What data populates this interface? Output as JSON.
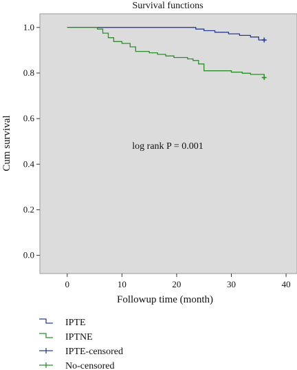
{
  "chart_data": {
    "type": "line",
    "title": "Survival functions",
    "xlabel": "Followup time (month)",
    "ylabel": "Cum survival",
    "xlim": [
      -5,
      42
    ],
    "ylim": [
      -0.08,
      1.06
    ],
    "xticks": [
      0,
      10,
      20,
      30,
      40
    ],
    "xtick_labels": [
      "0",
      "10",
      "20",
      "30",
      "40"
    ],
    "yticks": [
      0.0,
      0.2,
      0.4,
      0.6,
      0.8,
      1.0
    ],
    "ytick_labels": [
      "0.0",
      "0.2",
      "0.4",
      "0.6",
      "0.8",
      "1.0"
    ],
    "grid": false,
    "background": "#dcdcdc",
    "annotation": "log rank P = 0.001",
    "legend_position": "bottom-left",
    "series": [
      {
        "name": "IPTE",
        "color": "#2a3a8c",
        "kind": "step",
        "x": [
          0,
          23.5,
          25,
          27,
          29.5,
          31.5,
          33.5,
          35,
          36
        ],
        "y": [
          1.0,
          0.993,
          0.986,
          0.979,
          0.972,
          0.965,
          0.958,
          0.945,
          0.945
        ]
      },
      {
        "name": "IPTNE",
        "color": "#2e8b2e",
        "kind": "step",
        "x": [
          0,
          5.5,
          6.5,
          7.5,
          8.5,
          10,
          11.5,
          12.5,
          15,
          16.5,
          18,
          19.5,
          22,
          23,
          24,
          25,
          28,
          30,
          32,
          33.5,
          36
        ],
        "y": [
          1.0,
          0.993,
          0.975,
          0.955,
          0.938,
          0.93,
          0.915,
          0.895,
          0.889,
          0.882,
          0.875,
          0.868,
          0.862,
          0.855,
          0.84,
          0.81,
          0.81,
          0.804,
          0.799,
          0.794,
          0.78
        ]
      }
    ],
    "censored_markers": [
      {
        "name": "IPTE-censored",
        "color": "#2a3a8c",
        "x": [
          36
        ],
        "y": [
          0.945
        ]
      },
      {
        "name": "No-censored",
        "color": "#2e8b2e",
        "x": [
          36
        ],
        "y": [
          0.78
        ]
      }
    ]
  }
}
